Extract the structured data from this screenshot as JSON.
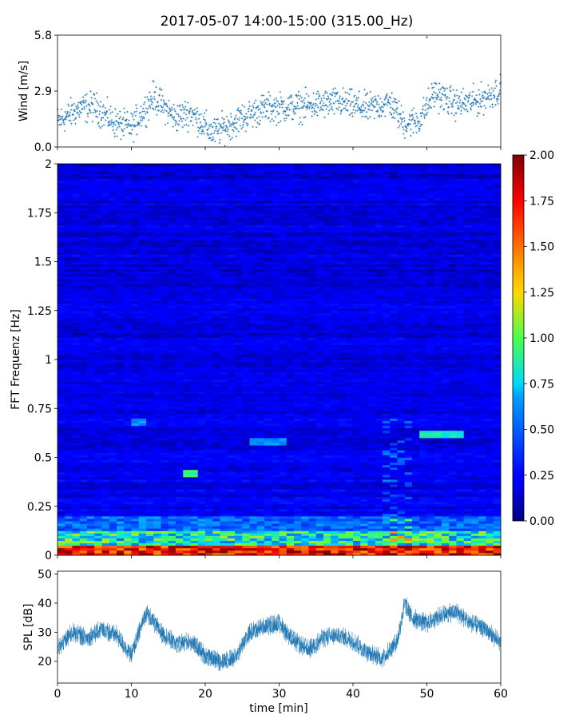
{
  "title": "2017-05-07 14:00-15:00 (315.00_Hz)",
  "chart_data": [
    {
      "type": "scatter",
      "ylabel": "Wind [m/s]",
      "xlabel": "",
      "xlim": [
        0,
        60
      ],
      "ylim": [
        0,
        5.8
      ],
      "y_ticks": [
        "0.0",
        "2.9",
        "5.8"
      ],
      "marker": "+",
      "color": "#1f77b4",
      "segments": [
        {
          "x": 0,
          "mean": 1.3
        },
        {
          "x": 3,
          "mean": 2.0
        },
        {
          "x": 5,
          "mean": 2.1
        },
        {
          "x": 8,
          "mean": 1.2
        },
        {
          "x": 10,
          "mean": 1.0
        },
        {
          "x": 13,
          "mean": 2.6
        },
        {
          "x": 16,
          "mean": 1.5
        },
        {
          "x": 18,
          "mean": 1.8
        },
        {
          "x": 21,
          "mean": 0.7
        },
        {
          "x": 25,
          "mean": 1.5
        },
        {
          "x": 28,
          "mean": 2.0
        },
        {
          "x": 33,
          "mean": 2.1
        },
        {
          "x": 38,
          "mean": 2.3
        },
        {
          "x": 42,
          "mean": 2.0
        },
        {
          "x": 45,
          "mean": 2.3
        },
        {
          "x": 47,
          "mean": 1.2
        },
        {
          "x": 49,
          "mean": 1.4
        },
        {
          "x": 51,
          "mean": 2.8
        },
        {
          "x": 54,
          "mean": 2.2
        },
        {
          "x": 57,
          "mean": 2.4
        },
        {
          "x": 60,
          "mean": 3.0
        }
      ],
      "max_point": {
        "x": 50,
        "y": 5.7
      }
    },
    {
      "type": "heatmap",
      "xlabel": "",
      "ylabel": "FFT Frequenz [Hz]",
      "xlim": [
        0,
        60
      ],
      "ylim": [
        0,
        2
      ],
      "y_ticks": [
        "0",
        "0.25",
        "0.5",
        "0.75",
        "1",
        "1.25",
        "1.5",
        "1.75",
        "2"
      ],
      "colormap": "jet",
      "colorbar": {
        "min": 0,
        "max": 2,
        "ticks": [
          "0.00",
          "0.25",
          "0.50",
          "0.75",
          "1.00",
          "1.25",
          "1.50",
          "1.75",
          "2.00"
        ]
      },
      "features": [
        {
          "freq": [
            0,
            0.05
          ],
          "value": 1.8,
          "desc": "strong low-frequency band"
        },
        {
          "freq": [
            0.05,
            0.2
          ],
          "value": 0.8
        },
        {
          "time": [
            10,
            12
          ],
          "freq": 0.68,
          "value": 0.7
        },
        {
          "time": [
            26,
            31
          ],
          "freq": 0.58,
          "value": 0.7
        },
        {
          "time": [
            17,
            19
          ],
          "freq": 0.42,
          "value": 1.0
        },
        {
          "time": [
            49,
            55
          ],
          "freq": 0.62,
          "value": 0.9
        }
      ]
    },
    {
      "type": "line",
      "xlabel": "time [min]",
      "ylabel": "SPL [dB]",
      "xlim": [
        0,
        60
      ],
      "ylim": [
        12.5,
        51
      ],
      "x_ticks": [
        "0",
        "10",
        "20",
        "30",
        "40",
        "50",
        "60"
      ],
      "y_ticks": [
        "20",
        "30",
        "40",
        "50"
      ],
      "color": "#1f77b4",
      "x": [
        0,
        2,
        4,
        6,
        8,
        10,
        12,
        14,
        16,
        18,
        20,
        22,
        24,
        26,
        28,
        30,
        32,
        34,
        36,
        38,
        40,
        42,
        44,
        46,
        47,
        48,
        50,
        52,
        54,
        56,
        58,
        60
      ],
      "y": [
        24,
        30,
        28,
        31,
        29,
        22,
        37,
        30,
        26,
        27,
        22,
        20,
        21,
        30,
        32,
        33,
        27,
        24,
        28,
        29,
        27,
        23,
        21,
        27,
        40,
        35,
        33,
        36,
        37,
        33,
        31,
        26
      ]
    }
  ]
}
